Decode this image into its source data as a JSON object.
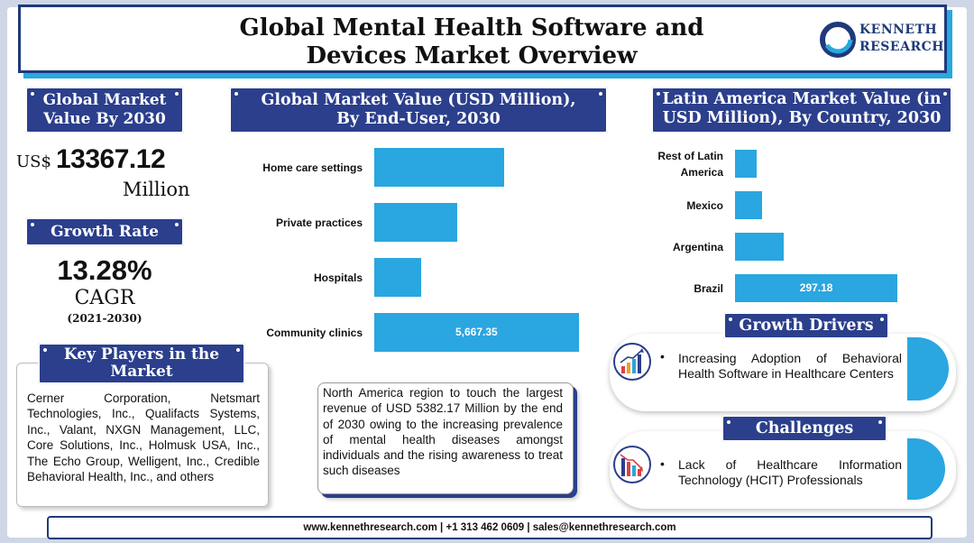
{
  "header": {
    "title_line1": "Global Mental Health Software and",
    "title_line2": "Devices Market Overview",
    "logo_line1": "KENNETH",
    "logo_line2": "RESEARCH"
  },
  "market_value": {
    "heading_line1": "Global Market",
    "heading_line2": "Value By 2030",
    "currency": "US$",
    "amount": "13367.12",
    "unit": "Million"
  },
  "growth": {
    "heading": "Growth Rate",
    "rate": "13.28%",
    "label": "CAGR",
    "period": "(2021-2030)"
  },
  "key_players": {
    "heading_line1": "Key Players in the",
    "heading_line2": "Market",
    "text": "Cerner Corporation, Netsmart Technologies, Inc., Qualifacts Systems, Inc., Valant, NXGN Management, LLC, Core Solutions, Inc., Holmusk USA, Inc., The Echo Group, Welligent, Inc., Credible Behavioral Health, Inc., and others"
  },
  "north_america": {
    "text": "North America region to touch the largest revenue of USD 5382.17 Million by the end of 2030 owing to the increasing prevalence of mental health diseases amongst individuals and the rising awareness to treat such diseases"
  },
  "chart_data": [
    {
      "type": "bar",
      "orientation": "horizontal",
      "title": "Global Market Value (USD Million), By End-User, 2030",
      "categories": [
        "Home care settings",
        "Private practices",
        "Hospitals",
        "Community clinics"
      ],
      "values": [
        3600,
        2300,
        1300,
        5667.35
      ],
      "data_labels": [
        "",
        "",
        "",
        "5,667.35"
      ],
      "xlim": [
        0,
        6000
      ]
    },
    {
      "type": "bar",
      "orientation": "horizontal",
      "title": "Latin America Market Value (in USD Million), By Country, 2030",
      "categories": [
        "Rest of Latin America",
        "Mexico",
        "Argentina",
        "Brazil"
      ],
      "category_lines": [
        [
          "Rest of Latin",
          "America"
        ],
        [
          "Mexico"
        ],
        [
          "Argentina"
        ],
        [
          "Brazil"
        ]
      ],
      "values": [
        40,
        50,
        89,
        297.18
      ],
      "data_labels": [
        "",
        "",
        "",
        "297.18"
      ],
      "xlim": [
        0,
        300
      ]
    }
  ],
  "chart_headings": {
    "end_user_line1": "Global Market Value (USD Million),",
    "end_user_line2": "By End-User, 2030",
    "latam_line1": "Latin America Market Value (in",
    "latam_line2": "USD Million), By Country, 2030"
  },
  "growth_drivers": {
    "heading": "Growth Drivers",
    "bullet": "•",
    "text": "Increasing Adoption of Behavioral Health Software in Healthcare Centers",
    "icon": "rising-bar-chart-icon"
  },
  "challenges": {
    "heading": "Challenges",
    "bullet": "•",
    "text": "Lack of Healthcare Information Technology (HCIT) Professionals",
    "icon": "falling-bar-chart-icon"
  },
  "footer": {
    "text": "www.kennethresearch.com | +1 313 462 0609 | sales@kennethresearch.com"
  },
  "colors": {
    "navy": "#2b3f8c",
    "bar_blue": "#2aa6e0",
    "accent_cyan": "#28a8e0"
  }
}
